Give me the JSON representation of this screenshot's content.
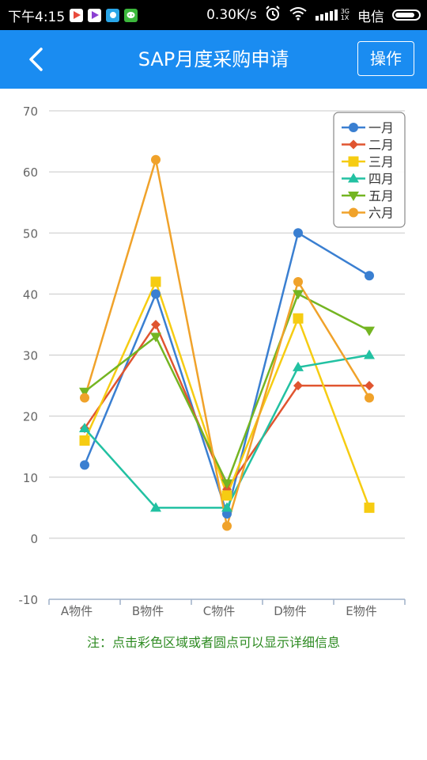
{
  "status_bar": {
    "time": "下午4:15",
    "speed": "0.30K/s",
    "signal_small": "3G\n1X",
    "carrier": "电信",
    "icons": [
      "play-icon",
      "play-icon",
      "app-icon",
      "wechat-icon",
      "alarm-icon",
      "wifi-icon",
      "signal-icon",
      "battery-icon"
    ]
  },
  "header": {
    "title": "SAP月度采购申请",
    "action_label": "操作",
    "back_icon": "chevron-left-icon",
    "background": "#1a8cf1"
  },
  "chart_data": {
    "type": "line",
    "categories": [
      "A物件",
      "B物件",
      "C物件",
      "D物件",
      "E物件"
    ],
    "ylim": [
      -10,
      70
    ],
    "yticks": [
      -10,
      0,
      10,
      20,
      30,
      40,
      50,
      60,
      70
    ],
    "grid": true,
    "legend_position": "top-right",
    "series": [
      {
        "name": "一月",
        "color": "#3a7fd1",
        "marker": "circle",
        "values": [
          12,
          40,
          4,
          50,
          43
        ]
      },
      {
        "name": "二月",
        "color": "#e05530",
        "marker": "diamond",
        "values": [
          18,
          35,
          8,
          25,
          25
        ]
      },
      {
        "name": "三月",
        "color": "#f6cc12",
        "marker": "square",
        "values": [
          16,
          42,
          7,
          36,
          5
        ]
      },
      {
        "name": "四月",
        "color": "#22c1a2",
        "marker": "triangle-up",
        "values": [
          18,
          5,
          5,
          28,
          30
        ]
      },
      {
        "name": "五月",
        "color": "#74b522",
        "marker": "triangle-down",
        "values": [
          24,
          33,
          9,
          40,
          34
        ]
      },
      {
        "name": "六月",
        "color": "#f0a22a",
        "marker": "circle",
        "values": [
          23,
          62,
          2,
          42,
          23
        ]
      }
    ]
  },
  "note": "注：点击彩色区域或者圆点可以显示详细信息"
}
